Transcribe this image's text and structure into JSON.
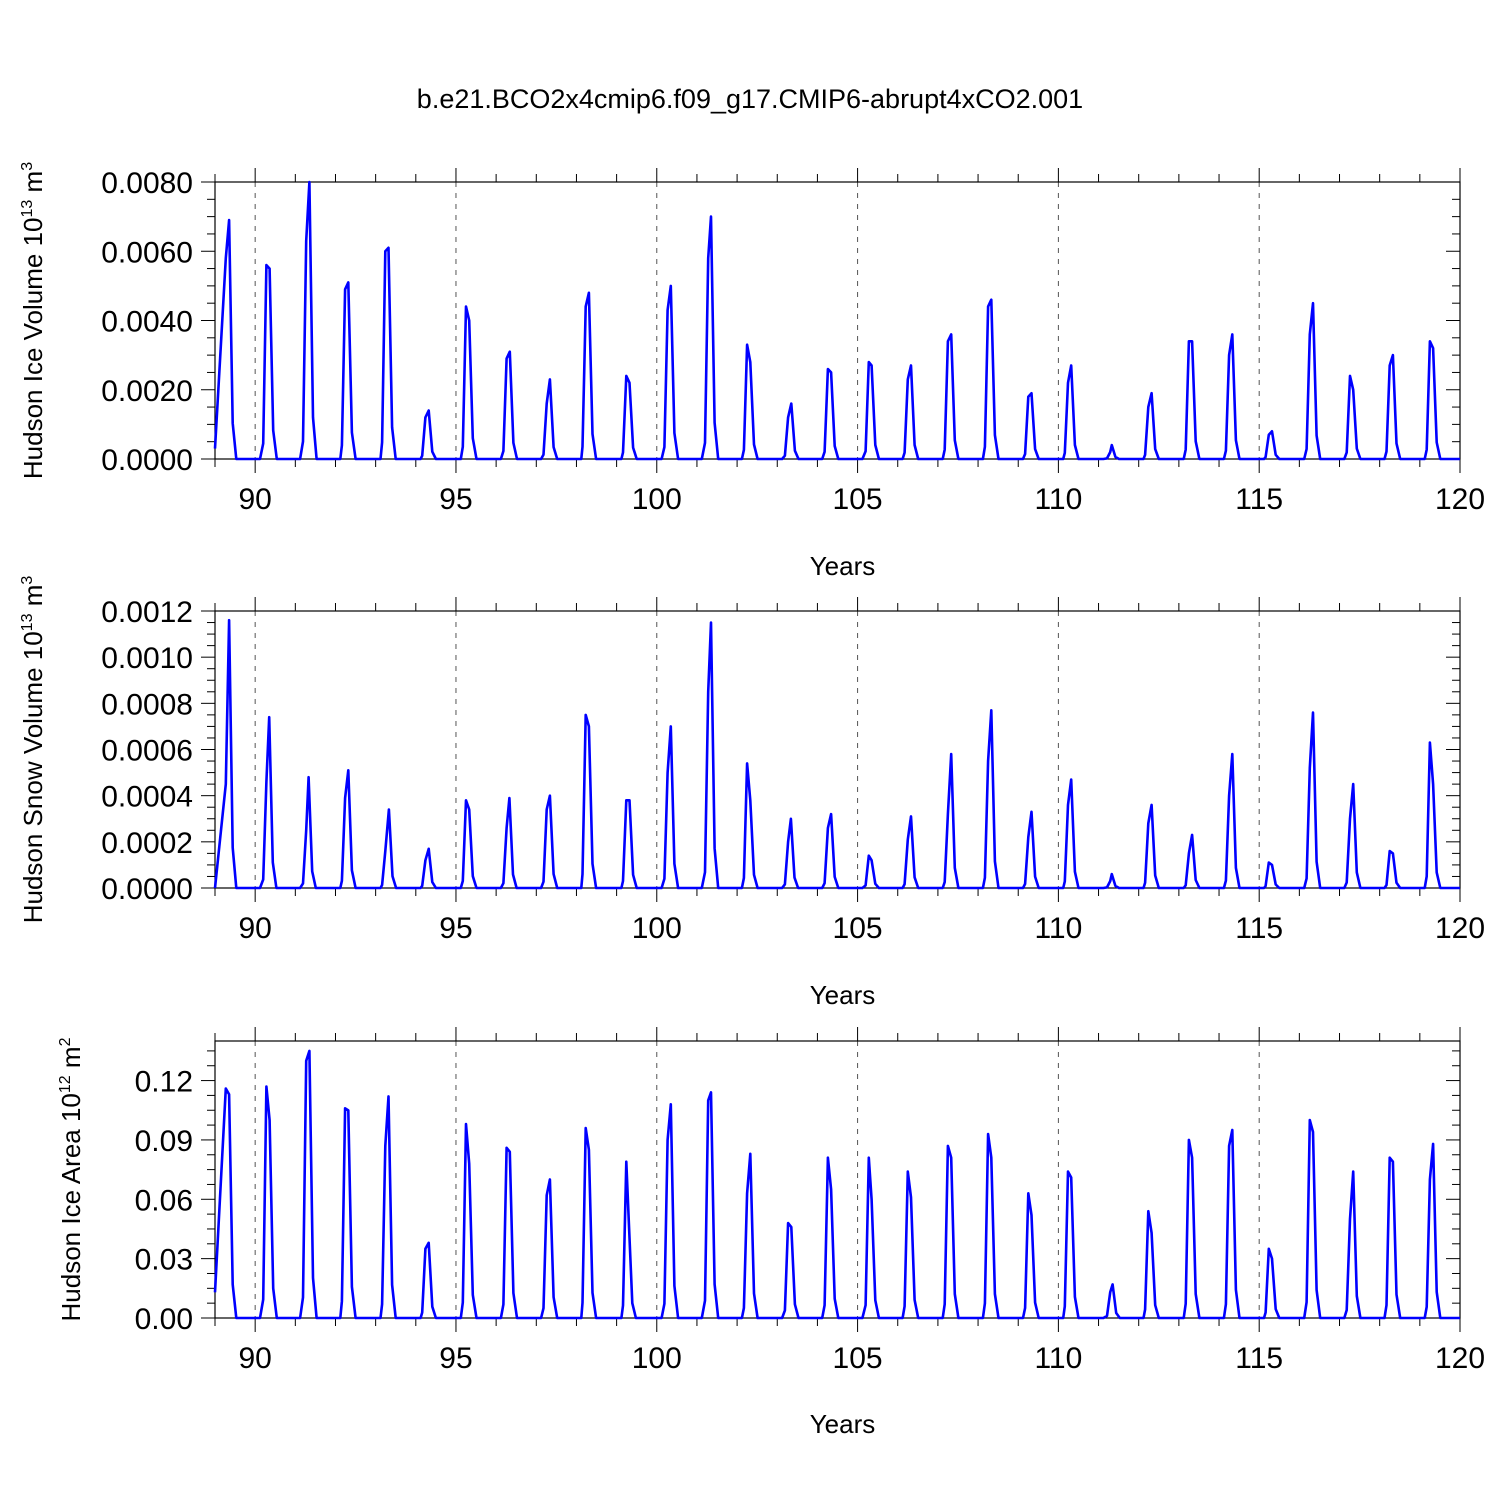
{
  "title": "b.e21.BCO2x4cmip6.f09_g17.CMIP6-abrupt4xCO2.001",
  "colors": {
    "line": "#0000ff",
    "axis": "#000000",
    "grid": "#555555"
  },
  "chart_data": [
    {
      "type": "line",
      "name": "ice-volume",
      "ylabel": "Hudson Ice Volume 10",
      "ylabel_sup": "13",
      "ylabel_unit": " m",
      "ylabel_unit_sup": "3",
      "xlabel": "Years",
      "xlim": [
        89,
        120
      ],
      "ylim": [
        0,
        0.008
      ],
      "x_ticks": [
        90,
        95,
        100,
        105,
        110,
        115,
        120
      ],
      "x_tick_labels": [
        "90",
        "95",
        "100",
        "105",
        "110",
        "115",
        "120"
      ],
      "y_ticks": [
        0,
        0.002,
        0.004,
        0.006,
        0.008
      ],
      "y_tick_labels": [
        "0.0000",
        "0.0020",
        "0.0040",
        "0.0060",
        "0.0080"
      ],
      "y_minor_step": 0.0005,
      "start_year": 89,
      "start_value": 0.0003,
      "peaks": [
        [
          89.27,
          0.0058
        ],
        [
          89.35,
          0.0069
        ],
        [
          90.28,
          0.0056
        ],
        [
          90.36,
          0.0055
        ],
        [
          91.27,
          0.0063
        ],
        [
          91.35,
          0.008
        ],
        [
          92.24,
          0.0049
        ],
        [
          92.32,
          0.0051
        ],
        [
          93.24,
          0.006
        ],
        [
          93.32,
          0.0061
        ],
        [
          94.24,
          0.0012
        ],
        [
          94.32,
          0.0014
        ],
        [
          95.25,
          0.0044
        ],
        [
          95.33,
          0.004
        ],
        [
          96.26,
          0.0029
        ],
        [
          96.34,
          0.0031
        ],
        [
          97.26,
          0.0016
        ],
        [
          97.34,
          0.0023
        ],
        [
          98.23,
          0.0044
        ],
        [
          98.31,
          0.0048
        ],
        [
          99.24,
          0.0024
        ],
        [
          99.32,
          0.0022
        ],
        [
          100.27,
          0.0043
        ],
        [
          100.35,
          0.005
        ],
        [
          101.28,
          0.0058
        ],
        [
          101.35,
          0.007
        ],
        [
          102.25,
          0.0033
        ],
        [
          102.33,
          0.0028
        ],
        [
          103.27,
          0.0012
        ],
        [
          103.35,
          0.0016
        ],
        [
          104.26,
          0.0026
        ],
        [
          104.34,
          0.0025
        ],
        [
          105.28,
          0.0028
        ],
        [
          105.35,
          0.0027
        ],
        [
          106.25,
          0.0023
        ],
        [
          106.33,
          0.0027
        ],
        [
          107.25,
          0.0034
        ],
        [
          107.33,
          0.0036
        ],
        [
          108.25,
          0.0044
        ],
        [
          108.33,
          0.0046
        ],
        [
          109.25,
          0.0018
        ],
        [
          109.33,
          0.0019
        ],
        [
          110.24,
          0.0022
        ],
        [
          110.32,
          0.0027
        ],
        [
          111.29,
          0.0002
        ],
        [
          111.33,
          0.0004
        ],
        [
          112.24,
          0.0015
        ],
        [
          112.32,
          0.0019
        ],
        [
          113.25,
          0.0034
        ],
        [
          113.33,
          0.0034
        ],
        [
          114.25,
          0.003
        ],
        [
          114.33,
          0.0036
        ],
        [
          115.24,
          0.0007
        ],
        [
          115.32,
          0.0008
        ],
        [
          116.26,
          0.0036
        ],
        [
          116.34,
          0.0045
        ],
        [
          117.26,
          0.0024
        ],
        [
          117.34,
          0.002
        ],
        [
          118.25,
          0.0027
        ],
        [
          118.33,
          0.003
        ],
        [
          119.25,
          0.0034
        ],
        [
          119.33,
          0.0032
        ]
      ]
    },
    {
      "type": "line",
      "name": "snow-volume",
      "ylabel": "Hudson Snow Volume 10",
      "ylabel_sup": "13",
      "ylabel_unit": " m",
      "ylabel_unit_sup": "3",
      "xlabel": "Years",
      "xlim": [
        89,
        120
      ],
      "ylim": [
        0,
        0.0012
      ],
      "x_ticks": [
        90,
        95,
        100,
        105,
        110,
        115,
        120
      ],
      "x_tick_labels": [
        "90",
        "95",
        "100",
        "105",
        "110",
        "115",
        "120"
      ],
      "y_ticks": [
        0,
        0.0002,
        0.0004,
        0.0006,
        0.0008,
        0.001,
        0.0012
      ],
      "y_tick_labels": [
        "0.0000",
        "0.0002",
        "0.0004",
        "0.0006",
        "0.0008",
        "0.0010",
        "0.0012"
      ],
      "y_minor_step": 5e-05,
      "start_year": 89,
      "start_value": 0.0,
      "peaks": [
        [
          89.27,
          0.00045
        ],
        [
          89.35,
          0.00116
        ],
        [
          90.28,
          0.00046
        ],
        [
          90.35,
          0.00074
        ],
        [
          91.27,
          0.00025
        ],
        [
          91.33,
          0.00048
        ],
        [
          92.24,
          0.00039
        ],
        [
          92.32,
          0.00051
        ],
        [
          93.24,
          0.00016
        ],
        [
          93.33,
          0.00034
        ],
        [
          94.24,
          0.00012
        ],
        [
          94.32,
          0.00017
        ],
        [
          95.25,
          0.00038
        ],
        [
          95.33,
          0.00034
        ],
        [
          96.26,
          0.00026
        ],
        [
          96.33,
          0.00039
        ],
        [
          97.26,
          0.00034
        ],
        [
          97.34,
          0.0004
        ],
        [
          98.23,
          0.00075
        ],
        [
          98.31,
          0.0007
        ],
        [
          99.24,
          0.00038
        ],
        [
          99.32,
          0.00038
        ],
        [
          100.27,
          0.0005
        ],
        [
          100.35,
          0.0007
        ],
        [
          101.28,
          0.00085
        ],
        [
          101.35,
          0.00115
        ],
        [
          102.25,
          0.00054
        ],
        [
          102.33,
          0.00038
        ],
        [
          103.27,
          0.0002
        ],
        [
          103.34,
          0.0003
        ],
        [
          104.26,
          0.00026
        ],
        [
          104.34,
          0.00032
        ],
        [
          105.28,
          0.00014
        ],
        [
          105.35,
          0.00012
        ],
        [
          106.25,
          0.00021
        ],
        [
          106.33,
          0.00031
        ],
        [
          107.25,
          0.00032
        ],
        [
          107.33,
          0.00058
        ],
        [
          108.25,
          0.00055
        ],
        [
          108.33,
          0.00077
        ],
        [
          109.25,
          0.00022
        ],
        [
          109.33,
          0.00033
        ],
        [
          110.24,
          0.00036
        ],
        [
          110.32,
          0.00047
        ],
        [
          111.29,
          3e-05
        ],
        [
          111.33,
          6e-05
        ],
        [
          112.24,
          0.00028
        ],
        [
          112.32,
          0.00036
        ],
        [
          113.25,
          0.00015
        ],
        [
          113.33,
          0.00023
        ],
        [
          114.25,
          0.0004
        ],
        [
          114.33,
          0.00058
        ],
        [
          115.24,
          0.00011
        ],
        [
          115.32,
          0.0001
        ],
        [
          116.26,
          0.00052
        ],
        [
          116.34,
          0.00076
        ],
        [
          117.26,
          0.0003
        ],
        [
          117.34,
          0.00045
        ],
        [
          118.25,
          0.00016
        ],
        [
          118.33,
          0.00015
        ],
        [
          119.25,
          0.00063
        ],
        [
          119.33,
          0.00045
        ]
      ]
    },
    {
      "type": "line",
      "name": "ice-area",
      "ylabel": "Hudson Ice Area 10",
      "ylabel_sup": "12",
      "ylabel_unit": " m",
      "ylabel_unit_sup": "2",
      "xlabel": "Years",
      "xlim": [
        89,
        120
      ],
      "ylim": [
        0,
        0.14
      ],
      "x_ticks": [
        90,
        95,
        100,
        105,
        110,
        115,
        120
      ],
      "x_tick_labels": [
        "90",
        "95",
        "100",
        "105",
        "110",
        "115",
        "120"
      ],
      "y_ticks": [
        0,
        0.03,
        0.06,
        0.09,
        0.12
      ],
      "y_tick_labels": [
        "0.00",
        "0.03",
        "0.06",
        "0.09",
        "0.12"
      ],
      "y_minor_step": 0.0075,
      "start_year": 89,
      "start_value": 0.013,
      "peaks": [
        [
          89.27,
          0.116
        ],
        [
          89.35,
          0.113
        ],
        [
          90.28,
          0.117
        ],
        [
          90.36,
          0.1
        ],
        [
          91.27,
          0.13
        ],
        [
          91.35,
          0.135
        ],
        [
          92.24,
          0.106
        ],
        [
          92.32,
          0.105
        ],
        [
          93.24,
          0.087
        ],
        [
          93.32,
          0.112
        ],
        [
          94.24,
          0.035
        ],
        [
          94.32,
          0.038
        ],
        [
          95.25,
          0.098
        ],
        [
          95.33,
          0.078
        ],
        [
          96.26,
          0.086
        ],
        [
          96.34,
          0.084
        ],
        [
          97.26,
          0.062
        ],
        [
          97.34,
          0.07
        ],
        [
          98.23,
          0.096
        ],
        [
          98.31,
          0.085
        ],
        [
          99.24,
          0.079
        ],
        [
          99.3,
          0.05
        ],
        [
          100.27,
          0.09
        ],
        [
          100.35,
          0.108
        ],
        [
          101.28,
          0.11
        ],
        [
          101.35,
          0.114
        ],
        [
          102.25,
          0.063
        ],
        [
          102.33,
          0.083
        ],
        [
          103.27,
          0.048
        ],
        [
          103.35,
          0.046
        ],
        [
          104.26,
          0.081
        ],
        [
          104.34,
          0.065
        ],
        [
          105.28,
          0.081
        ],
        [
          105.35,
          0.06
        ],
        [
          106.25,
          0.074
        ],
        [
          106.33,
          0.061
        ],
        [
          107.25,
          0.087
        ],
        [
          107.33,
          0.081
        ],
        [
          108.25,
          0.093
        ],
        [
          108.33,
          0.081
        ],
        [
          109.25,
          0.063
        ],
        [
          109.33,
          0.052
        ],
        [
          110.24,
          0.074
        ],
        [
          110.32,
          0.071
        ],
        [
          111.29,
          0.013
        ],
        [
          111.35,
          0.017
        ],
        [
          112.24,
          0.054
        ],
        [
          112.32,
          0.043
        ],
        [
          113.25,
          0.09
        ],
        [
          113.33,
          0.081
        ],
        [
          114.25,
          0.087
        ],
        [
          114.33,
          0.095
        ],
        [
          115.24,
          0.035
        ],
        [
          115.32,
          0.03
        ],
        [
          116.26,
          0.1
        ],
        [
          116.34,
          0.094
        ],
        [
          117.26,
          0.05
        ],
        [
          117.34,
          0.074
        ],
        [
          118.25,
          0.081
        ],
        [
          118.33,
          0.079
        ],
        [
          119.25,
          0.07
        ],
        [
          119.33,
          0.088
        ]
      ]
    }
  ]
}
